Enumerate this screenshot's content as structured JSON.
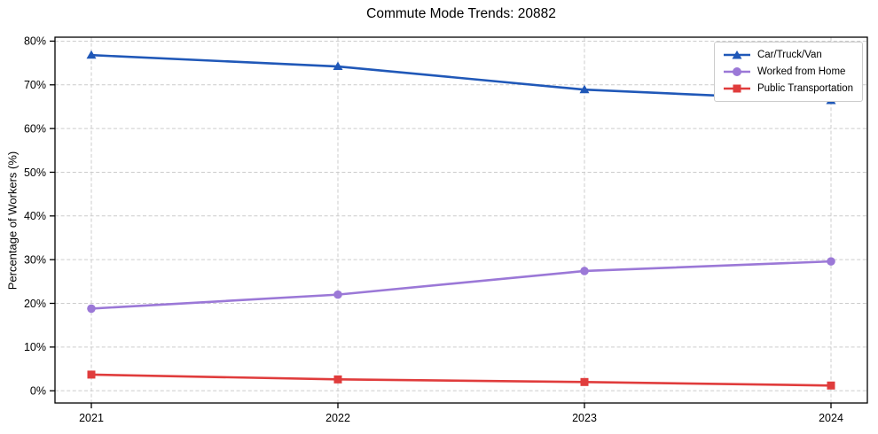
{
  "chart_data": {
    "type": "line",
    "title": "Commute Mode Trends: 20882",
    "xlabel": "",
    "ylabel": "Percentage of Workers (%)",
    "x": [
      2021,
      2022,
      2023,
      2024
    ],
    "x_tick_labels": [
      "2021",
      "2022",
      "2023",
      "2024"
    ],
    "series": [
      {
        "name": "Car/Truck/Van",
        "color": "#2058B8",
        "marker": "triangle",
        "values": [
          76.8,
          74.2,
          68.9,
          66.4
        ]
      },
      {
        "name": "Worked from Home",
        "color": "#9B78D7",
        "marker": "circle",
        "values": [
          18.8,
          22.0,
          27.4,
          29.6
        ]
      },
      {
        "name": "Public Transportation",
        "color": "#E03C3C",
        "marker": "square",
        "values": [
          3.7,
          2.6,
          2.0,
          1.2
        ]
      }
    ],
    "yticks": [
      0,
      10,
      20,
      30,
      40,
      50,
      60,
      70,
      80
    ],
    "ytick_suffix": "%",
    "ylim": [
      -2.8,
      80.9
    ],
    "grid": true,
    "grid_style": "dashed",
    "legend_position": "upper right"
  },
  "colors": {
    "background": "#ffffff",
    "grid": "#cccccc",
    "spine": "#000000",
    "tick": "#000000",
    "legend_border": "#cccccc"
  }
}
